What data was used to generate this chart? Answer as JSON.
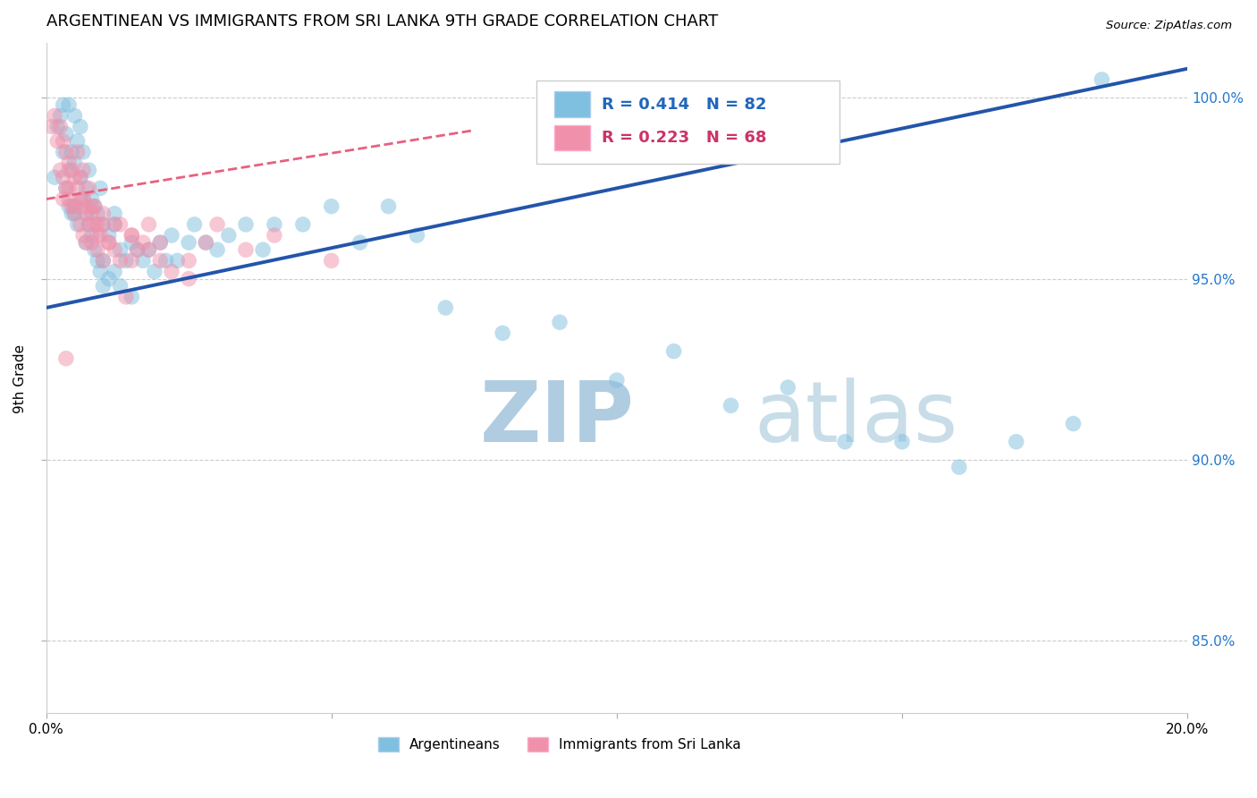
{
  "title": "ARGENTINEAN VS IMMIGRANTS FROM SRI LANKA 9TH GRADE CORRELATION CHART",
  "source_text": "Source: ZipAtlas.com",
  "ylabel": "9th Grade",
  "xmin": 0.0,
  "xmax": 20.0,
  "ymin": 83.0,
  "ymax": 101.5,
  "yticks": [
    85.0,
    90.0,
    95.0,
    100.0
  ],
  "ytick_labels": [
    "85.0%",
    "90.0%",
    "95.0%",
    "100.0%"
  ],
  "blue_R": 0.414,
  "blue_N": 82,
  "pink_R": 0.223,
  "pink_N": 68,
  "blue_color": "#7fbfdf",
  "pink_color": "#f090aa",
  "blue_line_color": "#2255aa",
  "pink_line_color": "#e86080",
  "legend_blue_label": "Argentineans",
  "legend_pink_label": "Immigrants from Sri Lanka",
  "watermark_color": "#cce0f0",
  "blue_line_x0": 0.0,
  "blue_line_y0": 94.2,
  "blue_line_x1": 20.0,
  "blue_line_y1": 100.8,
  "pink_line_x0": 0.0,
  "pink_line_y0": 97.2,
  "pink_line_x1": 7.5,
  "pink_line_y1": 99.1,
  "blue_x": [
    0.15,
    0.2,
    0.25,
    0.3,
    0.3,
    0.35,
    0.35,
    0.4,
    0.4,
    0.45,
    0.45,
    0.5,
    0.5,
    0.5,
    0.55,
    0.55,
    0.6,
    0.6,
    0.65,
    0.65,
    0.7,
    0.7,
    0.7,
    0.75,
    0.75,
    0.8,
    0.8,
    0.85,
    0.85,
    0.9,
    0.9,
    0.95,
    0.95,
    1.0,
    1.0,
    1.0,
    1.1,
    1.1,
    1.2,
    1.2,
    1.3,
    1.3,
    1.4,
    1.5,
    1.5,
    1.6,
    1.7,
    1.8,
    1.9,
    2.0,
    2.1,
    2.2,
    2.3,
    2.5,
    2.6,
    2.8,
    3.0,
    3.2,
    3.5,
    3.8,
    4.0,
    4.5,
    5.0,
    5.5,
    6.0,
    6.5,
    7.0,
    8.0,
    9.0,
    10.0,
    11.0,
    12.0,
    13.0,
    14.0,
    15.0,
    16.0,
    17.0,
    18.0,
    18.5,
    1.2,
    0.4,
    0.5
  ],
  "blue_y": [
    97.8,
    99.2,
    99.5,
    99.8,
    98.5,
    99.0,
    97.5,
    98.0,
    97.0,
    98.5,
    96.8,
    99.5,
    98.2,
    97.0,
    98.8,
    96.5,
    99.2,
    97.8,
    98.5,
    97.2,
    97.5,
    96.8,
    96.0,
    98.0,
    96.5,
    97.2,
    96.2,
    97.0,
    95.8,
    96.8,
    95.5,
    97.5,
    95.2,
    96.5,
    95.5,
    94.8,
    96.2,
    95.0,
    96.8,
    95.2,
    95.8,
    94.8,
    95.5,
    96.0,
    94.5,
    95.8,
    95.5,
    95.8,
    95.2,
    96.0,
    95.5,
    96.2,
    95.5,
    96.0,
    96.5,
    96.0,
    95.8,
    96.2,
    96.5,
    95.8,
    96.5,
    96.5,
    97.0,
    96.0,
    97.0,
    96.2,
    94.2,
    93.5,
    93.8,
    92.2,
    93.0,
    91.5,
    92.0,
    90.5,
    90.5,
    89.8,
    90.5,
    91.0,
    100.5,
    96.5,
    99.8,
    96.8
  ],
  "pink_x": [
    0.1,
    0.15,
    0.2,
    0.25,
    0.25,
    0.3,
    0.3,
    0.35,
    0.35,
    0.4,
    0.4,
    0.45,
    0.45,
    0.5,
    0.5,
    0.55,
    0.6,
    0.6,
    0.65,
    0.65,
    0.7,
    0.7,
    0.75,
    0.75,
    0.8,
    0.8,
    0.85,
    0.9,
    0.9,
    0.95,
    1.0,
    1.0,
    1.1,
    1.2,
    1.2,
    1.3,
    1.5,
    1.5,
    1.6,
    1.8,
    2.0,
    2.2,
    2.5,
    2.8,
    3.0,
    3.5,
    4.0,
    5.0,
    0.3,
    0.4,
    0.5,
    0.6,
    0.7,
    0.8,
    0.9,
    1.0,
    1.1,
    1.3,
    1.5,
    1.7,
    2.0,
    2.5,
    1.4,
    0.55,
    0.65,
    0.85,
    0.35,
    1.8
  ],
  "pink_y": [
    99.2,
    99.5,
    98.8,
    99.2,
    98.0,
    98.8,
    97.8,
    98.5,
    97.5,
    98.2,
    97.2,
    98.0,
    97.0,
    97.8,
    96.8,
    97.5,
    97.8,
    96.5,
    97.2,
    96.2,
    97.0,
    96.0,
    97.5,
    96.5,
    96.8,
    96.0,
    96.5,
    96.5,
    95.8,
    96.2,
    96.5,
    95.5,
    96.0,
    95.8,
    96.5,
    95.5,
    95.5,
    96.2,
    95.8,
    95.8,
    96.0,
    95.2,
    95.5,
    96.0,
    96.5,
    95.8,
    96.2,
    95.5,
    97.2,
    97.5,
    97.0,
    97.2,
    96.8,
    97.0,
    96.2,
    96.8,
    96.0,
    96.5,
    96.2,
    96.0,
    95.5,
    95.0,
    94.5,
    98.5,
    98.0,
    97.0,
    92.8,
    96.5
  ]
}
